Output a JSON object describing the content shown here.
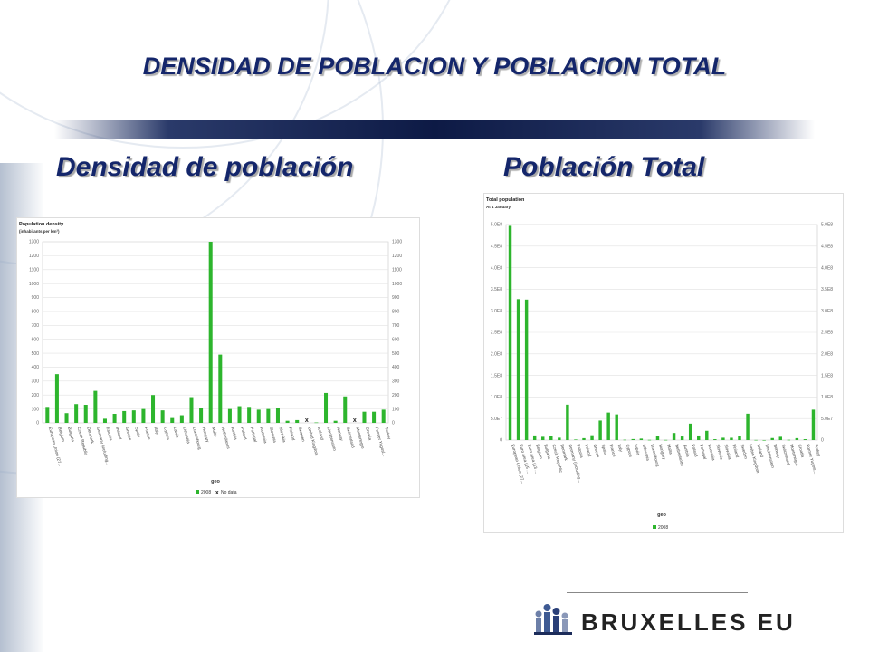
{
  "slide": {
    "title": "DENSIDAD DE POBLACION Y POBLACION TOTAL",
    "subtitle_left": "Densidad de población",
    "subtitle_right": "Población Total",
    "logo_text": "BRUXELLES EU",
    "colors": {
      "title": "#14266b",
      "bar": "#2db52d",
      "grid": "#e2e2e2"
    }
  },
  "chart_data": [
    {
      "type": "bar",
      "title": "Population density",
      "subtitle": "(inhabitants per km²)",
      "xlabel": "geo",
      "ylabel": "",
      "ylim": [
        0,
        1300
      ],
      "yticks": [
        0,
        100,
        200,
        300,
        400,
        500,
        600,
        700,
        800,
        900,
        1000,
        1100,
        1200,
        1300
      ],
      "ytick_labels": [
        "0",
        "100",
        "200",
        "300",
        "400",
        "500",
        "600",
        "700",
        "800",
        "900",
        "1000",
        "1100",
        "1200",
        "1300"
      ],
      "grid": true,
      "legend": "bottom",
      "legend_entries": [
        "2008",
        "No data"
      ],
      "categories": [
        "European Union (27...",
        "Belgium",
        "Bulgaria",
        "Czech Republic",
        "Denmark",
        "Germany (including...",
        "Estonia",
        "Ireland",
        "Greece",
        "Spain",
        "France",
        "Italy",
        "Cyprus",
        "Latvia",
        "Lithuania",
        "Luxembourg",
        "Hungary",
        "Malta",
        "Netherlands",
        "Austria",
        "Poland",
        "Portugal",
        "Romania",
        "Slovenia",
        "Slovakia",
        "Finland",
        "Sweden",
        "United Kingdom",
        "Iceland",
        "Liechtenstein",
        "Norway",
        "Switzerland",
        "Montenegro",
        "Croatia",
        "Former Yugosl...",
        "Turkey"
      ],
      "series": [
        {
          "name": "2008",
          "values": [
            115,
            350,
            70,
            135,
            130,
            230,
            30,
            65,
            85,
            90,
            100,
            200,
            90,
            35,
            55,
            185,
            110,
            1300,
            490,
            100,
            120,
            115,
            95,
            100,
            110,
            15,
            20,
            null,
            3,
            215,
            15,
            190,
            null,
            80,
            80,
            95
          ]
        }
      ],
      "no_data": [
        "United Kingdom",
        "Montenegro"
      ]
    },
    {
      "type": "bar",
      "title": "Total population",
      "subtitle": "At 1 January",
      "xlabel": "geo",
      "ylabel": "",
      "ylim": [
        0,
        500000000
      ],
      "yticks": [
        0,
        50000000,
        100000000,
        150000000,
        200000000,
        250000000,
        300000000,
        350000000,
        400000000,
        450000000,
        500000000
      ],
      "ytick_labels": [
        "0",
        "5.0E7",
        "1.0E8",
        "1.5E8",
        "2.0E8",
        "2.5E8",
        "3.0E8",
        "3.5E8",
        "4.0E8",
        "4.5E8",
        "5.0E8"
      ],
      "grid": true,
      "legend": "bottom",
      "legend_entries": [
        "2008"
      ],
      "categories": [
        "European Union (27...",
        "Euro area (15 ...",
        "Euro area (13 ...",
        "Belgium",
        "Bulgaria",
        "Czech Republic",
        "Denmark",
        "Germany (including...",
        "Estonia",
        "Ireland",
        "Greece",
        "Spain",
        "France",
        "Italy",
        "Cyprus",
        "Latvia",
        "Lithuania",
        "Luxembourg",
        "Hungary",
        "Malta",
        "Netherlands",
        "Austria",
        "Poland",
        "Portugal",
        "Romania",
        "Slovenia",
        "Slovakia",
        "Finland",
        "Sweden",
        "United Kingdom",
        "Iceland",
        "Liechtenstein",
        "Norway",
        "Switzerland",
        "Montenegro",
        "Croatia",
        "Former Yugosl...",
        "Turkey"
      ],
      "series": [
        {
          "name": "2008",
          "values": [
            497000000,
            327000000,
            326000000,
            10700000,
            7600000,
            10400000,
            5500000,
            82200000,
            1300000,
            4400000,
            11200000,
            45300000,
            63800000,
            59600000,
            800000,
            2300000,
            3400000,
            500000,
            10000000,
            400000,
            16400000,
            8300000,
            38100000,
            10600000,
            21500000,
            2000000,
            5400000,
            5300000,
            9200000,
            61200000,
            300000,
            35000,
            4700000,
            7600000,
            600000,
            4400000,
            2000000,
            70600000
          ]
        }
      ]
    }
  ]
}
